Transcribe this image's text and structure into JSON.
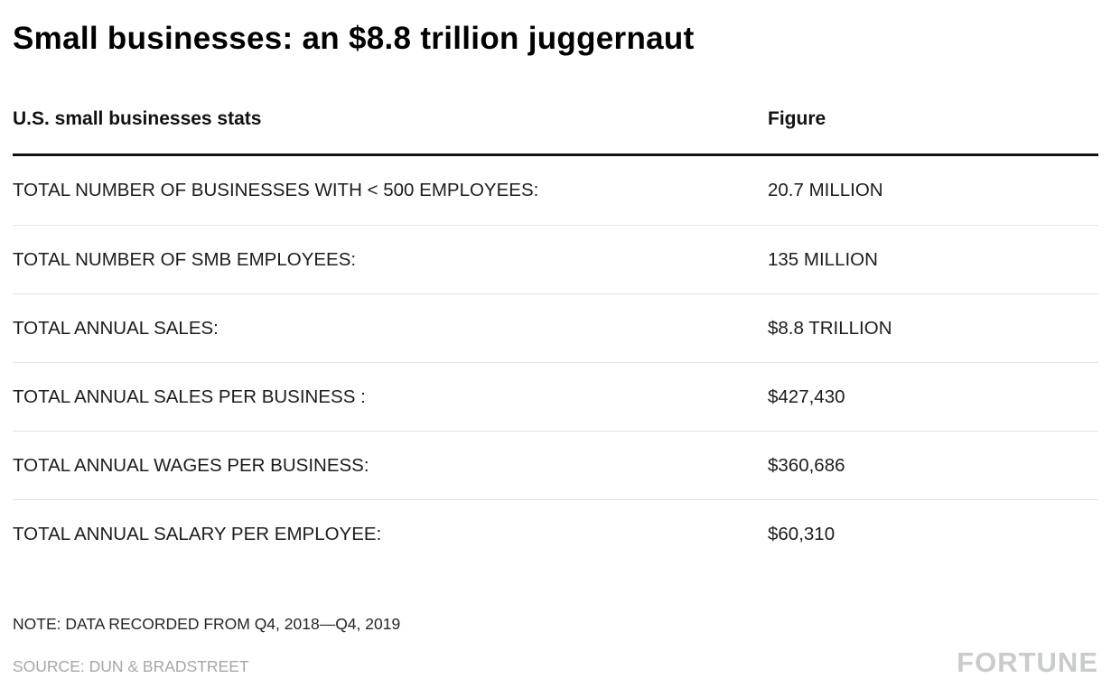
{
  "title": "Small businesses: an $8.8 trillion juggernaut",
  "table": {
    "col1_header": "U.S. small businesses stats",
    "col2_header": "Figure",
    "rows": [
      {
        "label": "TOTAL NUMBER OF BUSINESSES WITH < 500 EMPLOYEES:",
        "value": "20.7 MILLION"
      },
      {
        "label": "TOTAL NUMBER OF SMB EMPLOYEES:",
        "value": "135 MILLION"
      },
      {
        "label": "TOTAL ANNUAL SALES:",
        "value": "$8.8 TRILLION"
      },
      {
        "label": "TOTAL ANNUAL SALES PER BUSINESS :",
        "value": "$427,430"
      },
      {
        "label": "TOTAL ANNUAL WAGES PER BUSINESS:",
        "value": "$360,686"
      },
      {
        "label": "TOTAL ANNUAL SALARY PER EMPLOYEE:",
        "value": "$60,310"
      }
    ]
  },
  "note": "NOTE: DATA RECORDED FROM Q4, 2018—Q4, 2019",
  "source": "SOURCE: DUN & BRADSTREET",
  "brand": "FORTUNE",
  "colors": {
    "title": "#000000",
    "header_rule": "#111111",
    "row_divider": "#e3e3e3",
    "row_text": "#1c1c1c",
    "source_text": "#a6a6a6",
    "brand_logo": "#c9cbcc",
    "background": "#ffffff"
  },
  "chart_data": {
    "type": "table",
    "title": "Small businesses: an $8.8 trillion juggernaut",
    "columns": [
      "U.S. small businesses stats",
      "Figure"
    ],
    "rows": [
      [
        "TOTAL NUMBER OF BUSINESSES WITH < 500 EMPLOYEES:",
        "20.7 MILLION"
      ],
      [
        "TOTAL NUMBER OF SMB EMPLOYEES:",
        "135 MILLION"
      ],
      [
        "TOTAL ANNUAL SALES:",
        "$8.8 TRILLION"
      ],
      [
        "TOTAL ANNUAL SALES PER BUSINESS :",
        "$427,430"
      ],
      [
        "TOTAL ANNUAL WAGES PER BUSINESS:",
        "$360,686"
      ],
      [
        "TOTAL ANNUAL SALARY PER EMPLOYEE:",
        "$60,310"
      ]
    ],
    "note": "NOTE: DATA RECORDED FROM Q4, 2018—Q4, 2019",
    "source": "SOURCE: DUN & BRADSTREET",
    "legend_position": "none",
    "grid": "horizontal-dividers"
  }
}
